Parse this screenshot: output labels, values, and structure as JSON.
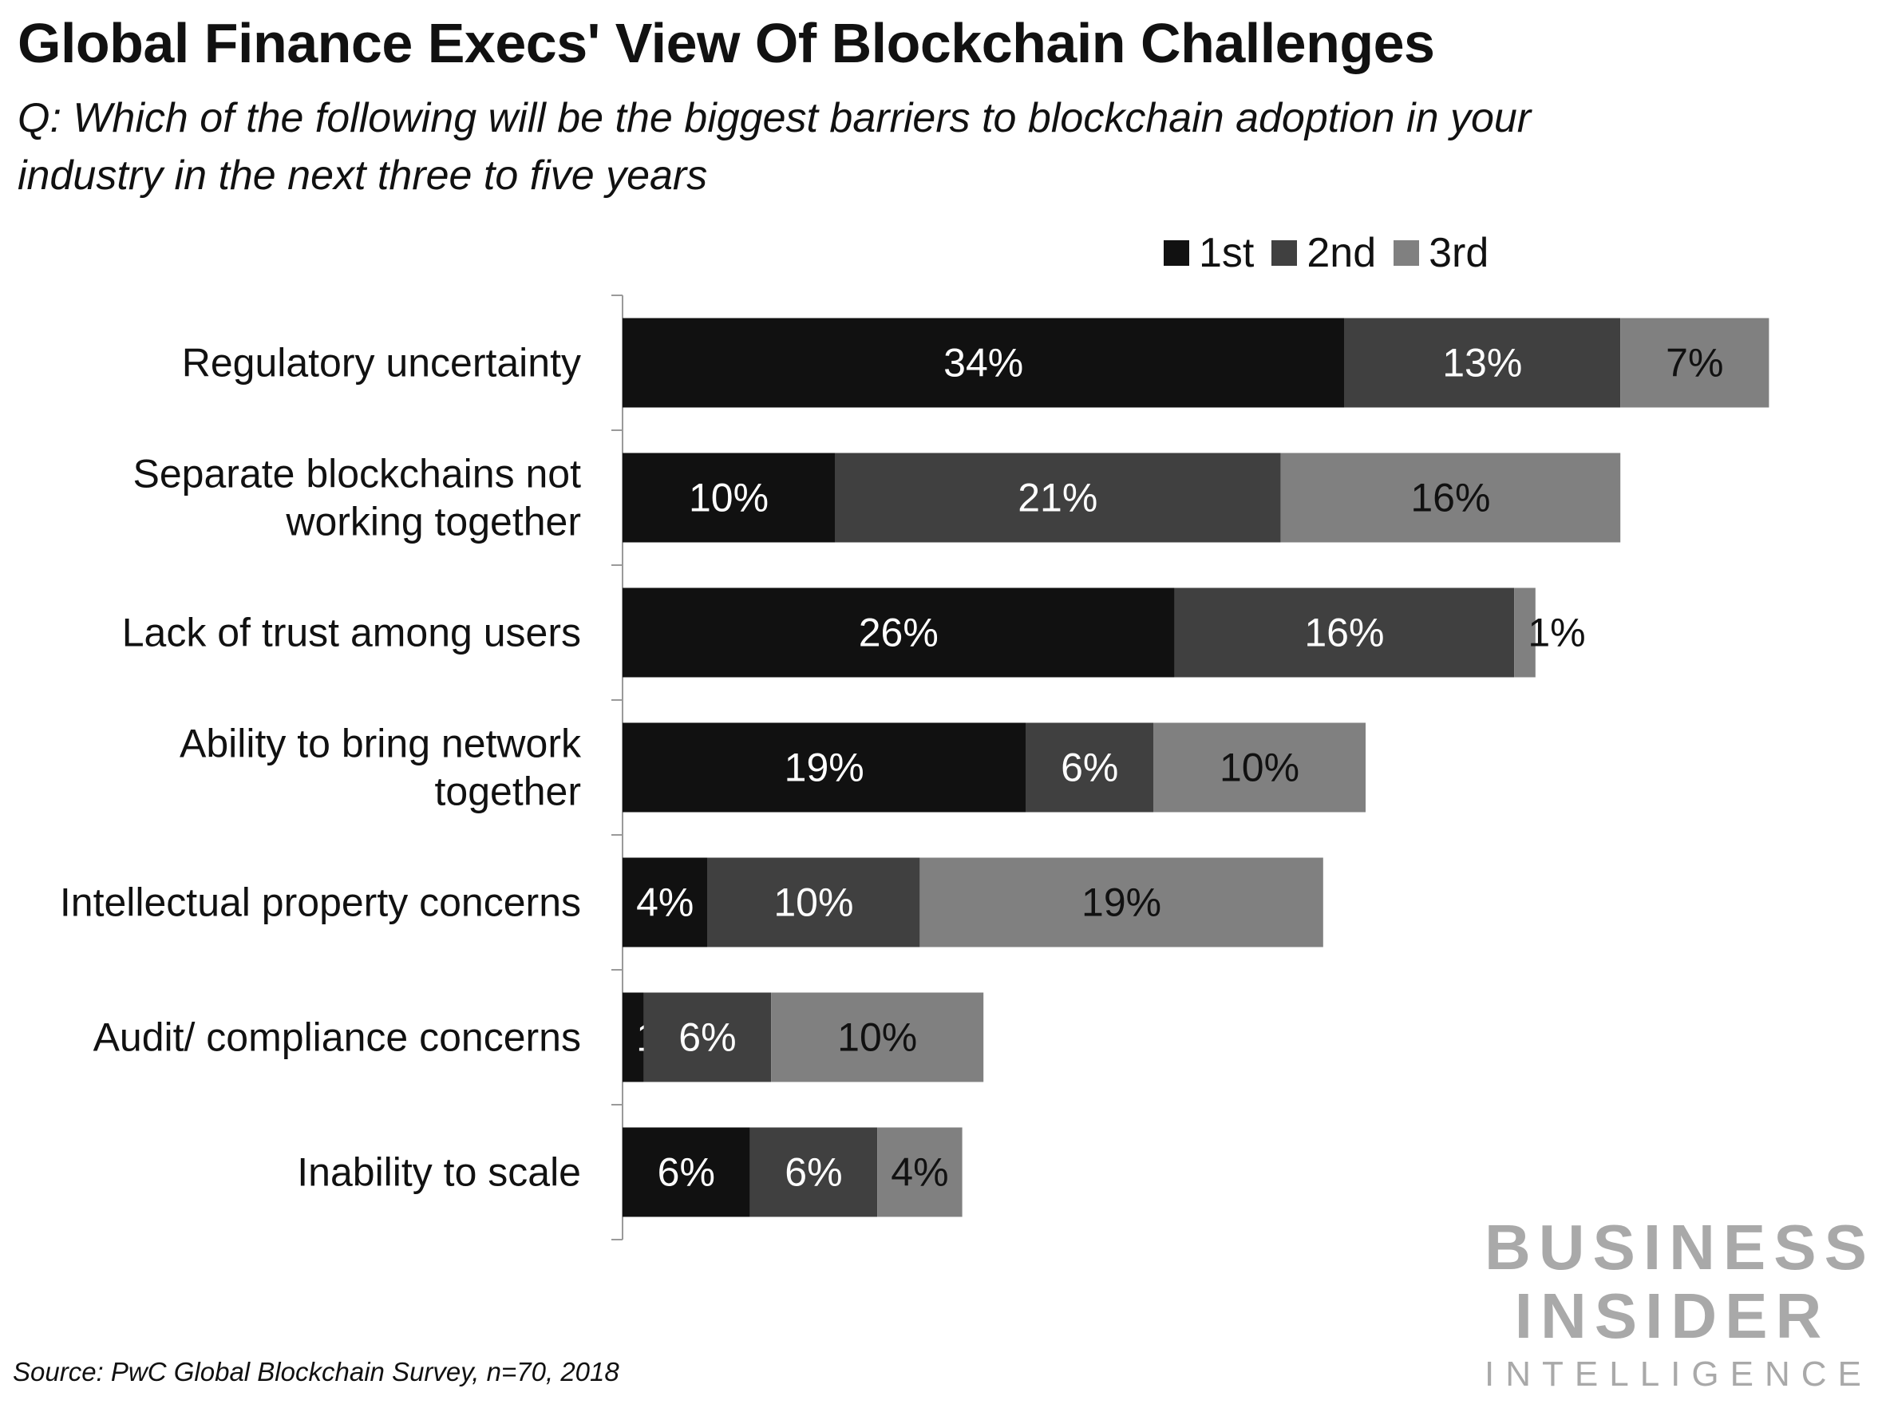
{
  "title": "Global Finance Execs' View Of Blockchain Challenges",
  "subtitle": "Q: Which of the following will be the biggest barriers to blockchain adoption in your industry in the next three to five years",
  "source": "Source: PwC Global Blockchain Survey, n=70, 2018",
  "logo": {
    "line1": "BUSINESS",
    "line2": "INSIDER",
    "line3": "INTELLIGENCE"
  },
  "colors": {
    "first": "#111111",
    "second": "#404040",
    "third": "#808080",
    "logo": "#a9a9a9"
  },
  "legend": [
    {
      "label": "1st",
      "color": "#111111"
    },
    {
      "label": "2nd",
      "color": "#404040"
    },
    {
      "label": "3rd",
      "color": "#808080"
    }
  ],
  "chart_data": {
    "type": "bar",
    "orientation": "horizontal",
    "stacked": true,
    "categories": [
      "Regulatory uncertainty",
      "Separate blockchains not working together",
      "Lack of trust among users",
      "Ability to bring network together",
      "Intellectual property concerns",
      "Audit/ compliance concerns",
      "Inability to scale"
    ],
    "category_lines": [
      [
        "Regulatory uncertainty"
      ],
      [
        "Separate blockchains not",
        "working together"
      ],
      [
        "Lack of trust among users"
      ],
      [
        "Ability to bring network",
        "together"
      ],
      [
        "Intellectual property concerns"
      ],
      [
        "Audit/ compliance concerns"
      ],
      [
        "Inability to scale"
      ]
    ],
    "series": [
      {
        "name": "1st",
        "color": "#111111",
        "values": [
          34,
          10,
          26,
          19,
          4,
          1,
          6
        ]
      },
      {
        "name": "2nd",
        "color": "#404040",
        "values": [
          13,
          21,
          16,
          6,
          10,
          6,
          6
        ]
      },
      {
        "name": "3rd",
        "color": "#808080",
        "values": [
          7,
          16,
          1,
          10,
          19,
          10,
          4
        ]
      }
    ],
    "value_suffix": "%",
    "xlim": [
      0,
      54
    ],
    "legend_position": "top-right",
    "grid": false
  }
}
